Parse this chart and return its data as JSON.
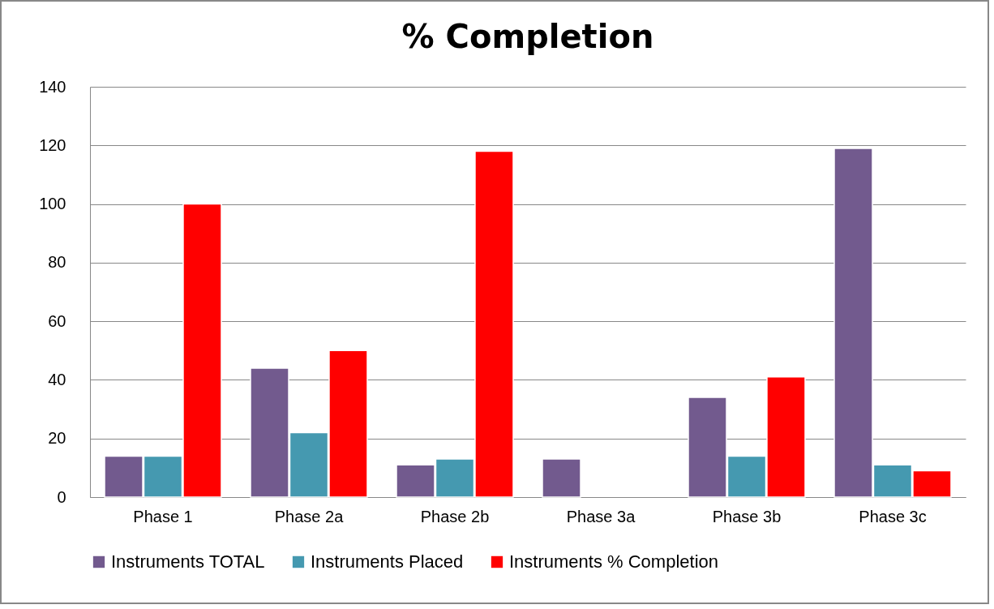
{
  "chart_data": {
    "type": "bar",
    "title": "% Completion",
    "categories": [
      "Phase 1",
      "Phase 2a",
      "Phase 2b",
      "Phase 3a",
      "Phase 3b",
      "Phase 3c"
    ],
    "series": [
      {
        "name": "Instruments TOTAL",
        "color": "#725a8e",
        "values": [
          14,
          44,
          11,
          13,
          34,
          119
        ]
      },
      {
        "name": "Instruments Placed",
        "color": "#4599b0",
        "values": [
          14,
          22,
          13,
          null,
          14,
          11
        ]
      },
      {
        "name": "Instruments % Completion",
        "color": "#ff0000",
        "values": [
          100,
          50,
          118,
          null,
          41,
          9
        ]
      }
    ],
    "ylim": [
      0,
      140
    ],
    "yticks": [
      0,
      20,
      40,
      60,
      80,
      100,
      120,
      140
    ],
    "grid": "y",
    "legend": "bottom"
  }
}
